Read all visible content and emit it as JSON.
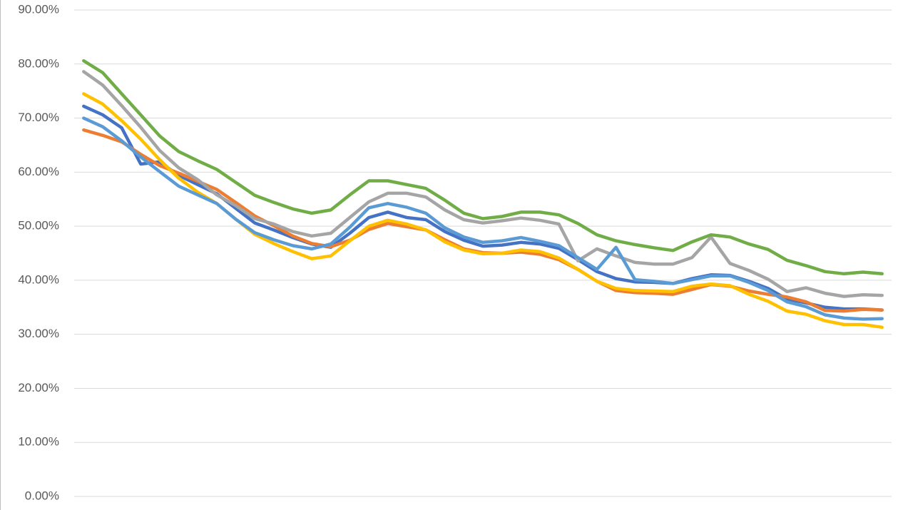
{
  "chart_data": {
    "type": "line",
    "categories": [
      null,
      null,
      null,
      null,
      null,
      null,
      null,
      null,
      null,
      null,
      null,
      null,
      null,
      null,
      null,
      null,
      null,
      null,
      null,
      null,
      null,
      null,
      null,
      null,
      null,
      null,
      null,
      null,
      null,
      null,
      null,
      null,
      null,
      null,
      null,
      null,
      null,
      null,
      null,
      null,
      null,
      null,
      null
    ],
    "series": [
      {
        "color": "#4472c4",
        "values": [
          72.2,
          70.6,
          68.2,
          61.5,
          61.9,
          59.4,
          57.7,
          56.0,
          53.3,
          50.6,
          49.3,
          47.9,
          46.7,
          46.1,
          48.7,
          51.6,
          52.6,
          51.6,
          51.2,
          49.0,
          47.4,
          46.3,
          46.5,
          47.0,
          46.7,
          45.9,
          43.8,
          41.6,
          40.3,
          39.7,
          39.6,
          39.4,
          40.3,
          41.0,
          40.9,
          39.8,
          38.5,
          36.5,
          35.8,
          35.0,
          34.7,
          34.7,
          34.5
        ]
      },
      {
        "color": "#ed7d31",
        "values": [
          67.8,
          66.8,
          65.6,
          63.3,
          61.2,
          59.8,
          58.3,
          56.8,
          54.4,
          51.9,
          50.1,
          48.2,
          46.8,
          46.2,
          47.4,
          49.4,
          50.5,
          49.9,
          49.3,
          47.5,
          45.8,
          45.1,
          45.0,
          45.2,
          44.8,
          43.8,
          42.0,
          39.8,
          38.1,
          37.7,
          37.6,
          37.4,
          38.3,
          39.2,
          38.9,
          38.0,
          37.4,
          36.9,
          36.0,
          34.4,
          34.3,
          34.6,
          34.5
        ]
      },
      {
        "color": "#a5a5a5",
        "values": [
          78.6,
          76.1,
          72.3,
          68.3,
          64.0,
          60.8,
          58.6,
          55.8,
          53.8,
          51.4,
          50.4,
          49.0,
          48.2,
          48.7,
          51.6,
          54.5,
          56.1,
          56.1,
          55.4,
          53.0,
          51.2,
          50.6,
          51.0,
          51.5,
          51.1,
          50.4,
          43.6,
          45.8,
          44.5,
          43.3,
          43.0,
          43.0,
          44.2,
          48.0,
          43.1,
          41.8,
          40.2,
          37.9,
          38.6,
          37.6,
          37.0,
          37.3,
          37.2
        ]
      },
      {
        "color": "#ffc000",
        "values": [
          74.5,
          72.6,
          69.5,
          66.1,
          62.3,
          58.9,
          56.3,
          54.2,
          51.3,
          48.5,
          46.8,
          45.3,
          44.0,
          44.5,
          47.3,
          50.0,
          51.1,
          50.4,
          49.3,
          47.1,
          45.6,
          44.9,
          45.0,
          45.6,
          45.3,
          44.1,
          42.0,
          39.8,
          38.5,
          38.1,
          38.0,
          37.9,
          38.9,
          39.3,
          39.0,
          37.4,
          36.1,
          34.3,
          33.7,
          32.5,
          31.8,
          31.8,
          31.3
        ]
      },
      {
        "color": "#5b9bd5",
        "values": [
          70.0,
          68.4,
          65.8,
          62.8,
          60.1,
          57.4,
          55.8,
          54.2,
          51.3,
          48.8,
          47.5,
          46.4,
          45.8,
          46.7,
          49.8,
          53.4,
          54.2,
          53.5,
          52.4,
          49.7,
          48.0,
          47.0,
          47.3,
          47.9,
          47.2,
          46.4,
          44.2,
          42.0,
          46.1,
          40.1,
          39.8,
          39.4,
          40.1,
          40.8,
          40.8,
          39.6,
          38.1,
          36.0,
          35.1,
          33.6,
          33.0,
          32.8,
          32.9
        ]
      },
      {
        "color": "#70ad47",
        "values": [
          80.6,
          78.4,
          74.5,
          70.6,
          66.7,
          63.8,
          62.1,
          60.5,
          58.1,
          55.7,
          54.4,
          53.2,
          52.4,
          53.0,
          55.8,
          58.4,
          58.4,
          57.7,
          57.0,
          54.8,
          52.4,
          51.4,
          51.8,
          52.6,
          52.6,
          52.1,
          50.5,
          48.4,
          47.3,
          46.6,
          46.0,
          45.5,
          47.1,
          48.4,
          48.0,
          46.7,
          45.7,
          43.7,
          42.7,
          41.6,
          41.2,
          41.5,
          41.2
        ]
      }
    ],
    "ylim": [
      0,
      90
    ],
    "yticks": [
      {
        "value": 0,
        "label": "0.00%"
      },
      {
        "value": 10,
        "label": "10.00%"
      },
      {
        "value": 20,
        "label": "20.00%"
      },
      {
        "value": 30,
        "label": "30.00%"
      },
      {
        "value": 40,
        "label": "40.00%"
      },
      {
        "value": 50,
        "label": "50.00%"
      },
      {
        "value": 60,
        "label": "60.00%"
      },
      {
        "value": 70,
        "label": "70.00%"
      },
      {
        "value": 80,
        "label": "80.00%"
      },
      {
        "value": 90,
        "label": "90.00%"
      }
    ],
    "grid": true
  }
}
